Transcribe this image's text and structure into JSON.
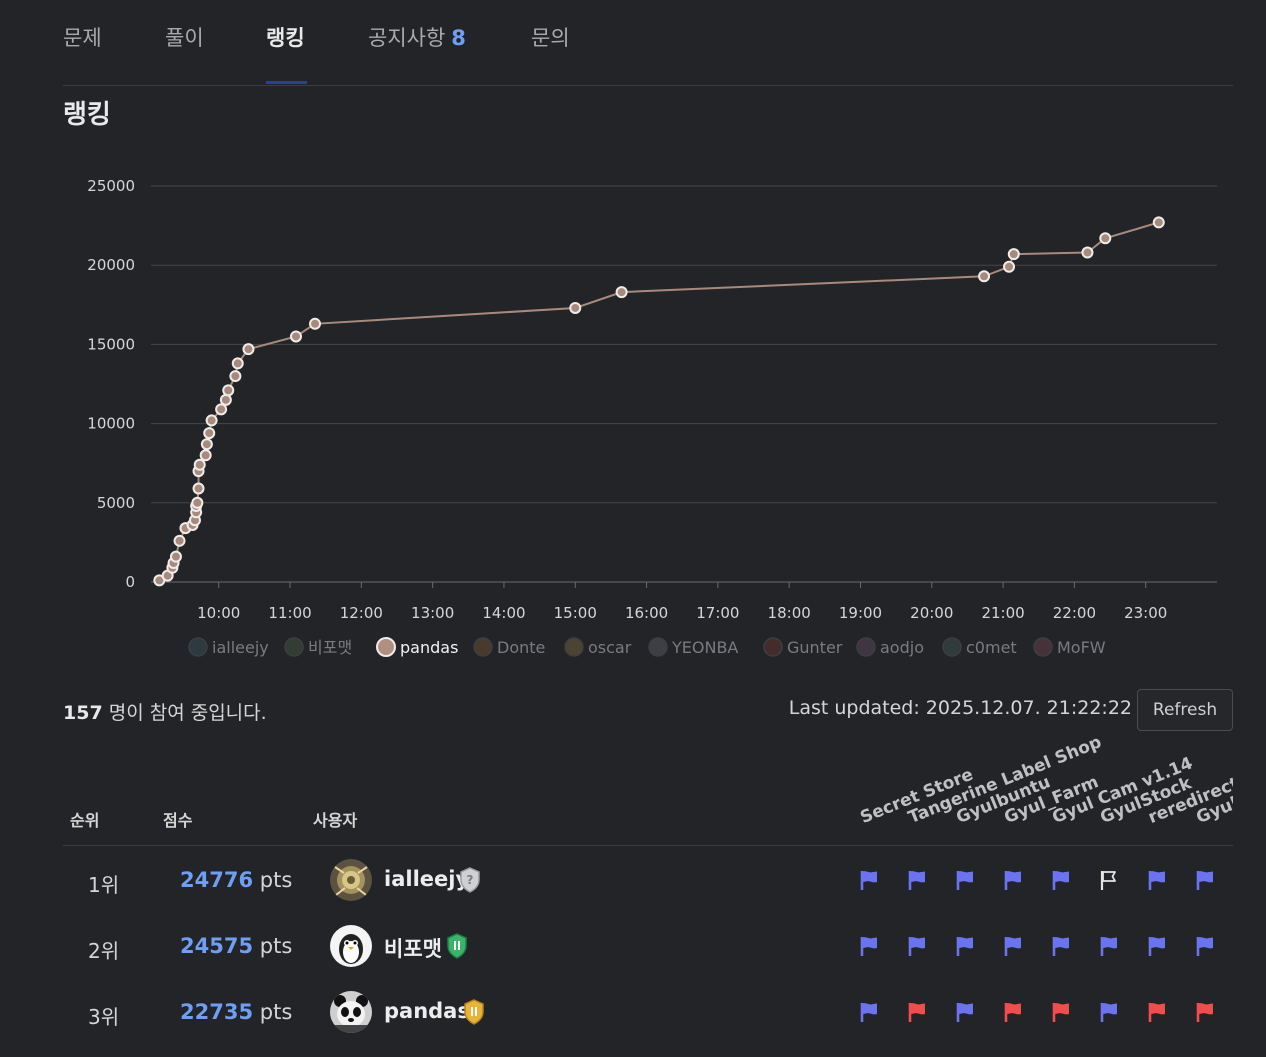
{
  "tabs": [
    {
      "label": "문제"
    },
    {
      "label": "풀이"
    },
    {
      "label": "랭킹",
      "active": true
    },
    {
      "label": "공지사항",
      "count": "8"
    },
    {
      "label": "문의"
    }
  ],
  "section_title": "랭킹",
  "chart_data": {
    "type": "line",
    "title": "",
    "xlabel": "",
    "ylabel": "",
    "x_ticks": [
      "10:00",
      "11:00",
      "12:00",
      "13:00",
      "14:00",
      "15:00",
      "16:00",
      "17:00",
      "18:00",
      "19:00",
      "20:00",
      "21:00",
      "22:00",
      "23:00"
    ],
    "y_ticks": [
      0,
      5000,
      10000,
      15000,
      20000,
      25000
    ],
    "ylim": [
      0,
      25000
    ],
    "xlim_hours": [
      9.05,
      24.0
    ],
    "grid": true,
    "legend_position": "bottom",
    "legend": [
      {
        "name": "ialleejy",
        "color": "#2f3a40",
        "active": false
      },
      {
        "name": "비포맷",
        "color": "#333d33",
        "active": false
      },
      {
        "name": "pandas",
        "color": "#b09080",
        "active": true
      },
      {
        "name": "Donte",
        "color": "#4a3a2c",
        "active": false
      },
      {
        "name": "oscar",
        "color": "#4b4431",
        "active": false
      },
      {
        "name": "YEONBA",
        "color": "#3d3f45",
        "active": false
      },
      {
        "name": "Gunter",
        "color": "#452c2c",
        "active": false
      },
      {
        "name": "aodjo",
        "color": "#3f3543",
        "active": false
      },
      {
        "name": "c0met",
        "color": "#2f3c3b",
        "active": false
      },
      {
        "name": "MoFW",
        "color": "#473337",
        "active": false
      }
    ],
    "series": [
      {
        "name": "pandas",
        "color": "#a88a7d",
        "points": [
          [
            "09:10",
            100
          ],
          [
            "09:17",
            400
          ],
          [
            "09:21",
            900
          ],
          [
            "09:22",
            1200
          ],
          [
            "09:24",
            1600
          ],
          [
            "09:27",
            2600
          ],
          [
            "09:32",
            3400
          ],
          [
            "09:38",
            3600
          ],
          [
            "09:40",
            3900
          ],
          [
            "09:41",
            4400
          ],
          [
            "09:41",
            4800
          ],
          [
            "09:42",
            5000
          ],
          [
            "09:43",
            5900
          ],
          [
            "09:43",
            7000
          ],
          [
            "09:44",
            7400
          ],
          [
            "09:49",
            8000
          ],
          [
            "09:50",
            8700
          ],
          [
            "09:52",
            9400
          ],
          [
            "09:54",
            10200
          ],
          [
            "10:02",
            10900
          ],
          [
            "10:06",
            11500
          ],
          [
            "10:08",
            12100
          ],
          [
            "10:14",
            13000
          ],
          [
            "10:16",
            13800
          ],
          [
            "10:25",
            14700
          ],
          [
            "11:05",
            15500
          ],
          [
            "11:21",
            16300
          ],
          [
            "15:00",
            17300
          ],
          [
            "15:39",
            18300
          ],
          [
            "20:44",
            19300
          ],
          [
            "21:05",
            19900
          ],
          [
            "21:09",
            20700
          ],
          [
            "22:11",
            20800
          ],
          [
            "22:26",
            21700
          ],
          [
            "23:11",
            22700
          ]
        ]
      }
    ]
  },
  "participants": {
    "count": "157",
    "suffix": " 명이 참여 중입니다."
  },
  "last_updated": "Last updated: 2025.12.07. 21:22:22",
  "refresh_label": "Refresh",
  "table": {
    "headers": {
      "rank": "순위",
      "score": "점수",
      "user": "사용자"
    },
    "challenges": [
      "Secret Store",
      "Tangerine Label Shop",
      "Gyulbuntu",
      "Gyul_Farm",
      "Gyul Cam v1.14",
      "GyulStock",
      "reredirect?",
      "Gyul"
    ],
    "score_unit": "pts",
    "rows": [
      {
        "rank": "1위",
        "score": "24776",
        "user": "ialleejy",
        "tier": "silver",
        "avatar": "artwork",
        "flags": [
          "solved",
          "solved",
          "solved",
          "solved",
          "solved",
          "unsolved",
          "solved",
          "solved"
        ]
      },
      {
        "rank": "2위",
        "score": "24575",
        "user": "비포맷",
        "tier": "green",
        "avatar": "penguin",
        "flags": [
          "solved",
          "solved",
          "solved",
          "solved",
          "solved",
          "solved",
          "solved",
          "solved"
        ]
      },
      {
        "rank": "3위",
        "score": "22735",
        "user": "pandas",
        "tier": "gold",
        "avatar": "panda",
        "flags": [
          "solved",
          "first-blood",
          "solved",
          "first-blood",
          "first-blood",
          "solved",
          "first-blood",
          "first-blood"
        ]
      }
    ]
  },
  "colors": {
    "accent": "#6f9ff5",
    "flag_solved": "#6b73f1",
    "flag_first_blood": "#f24c4c",
    "tab_underline": "#2b3e9a"
  }
}
